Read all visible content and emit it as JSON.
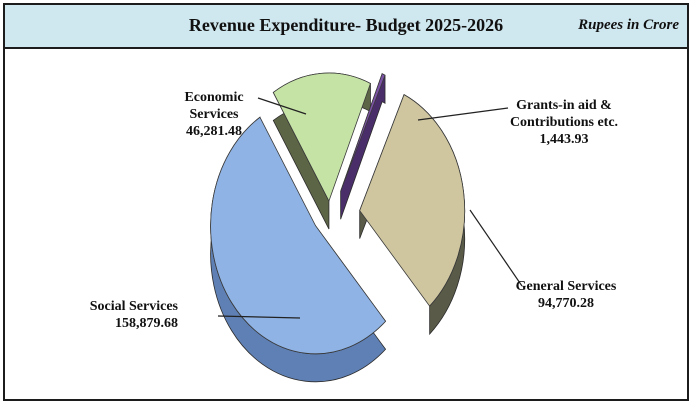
{
  "chart_data": {
    "type": "pie",
    "title": "Revenue Expenditure- Budget 2025-2026",
    "unit": "Rupees in Crore",
    "legend": "none",
    "slices": [
      {
        "label_lines": [
          "Social Services",
          "158,879.68"
        ],
        "category": "Social Services",
        "value": 158879.68,
        "value_text": "158,879.68",
        "color": "#8fb3e4",
        "side_color": "#5f80b4"
      },
      {
        "label_lines": [
          "Economic",
          "Services",
          "46,281.48"
        ],
        "category": "Economic Services",
        "value": 46281.48,
        "value_text": "46,281.48",
        "color": "#c6e3a6",
        "side_color": "#5d6547"
      },
      {
        "label_lines": [
          "Grants-in aid &",
          "Contributions etc.",
          "1,443.93"
        ],
        "category": "Grants-in aid & Contributions etc.",
        "value": 1443.93,
        "value_text": "1,443.93",
        "color": "#7c52a6",
        "side_color": "#4a2e6a"
      },
      {
        "label_lines": [
          "General Services",
          "94,770.28"
        ],
        "category": "General Services",
        "value": 94770.28,
        "value_text": "94,770.28",
        "color": "#cfc6a0",
        "side_color": "#5a5a48"
      }
    ]
  }
}
